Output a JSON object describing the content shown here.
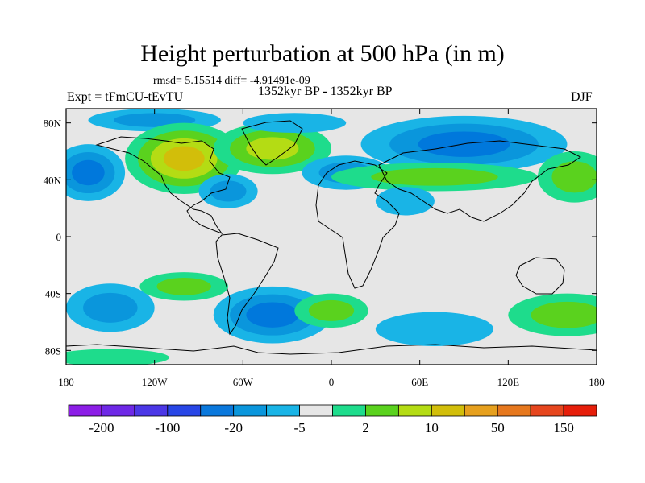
{
  "title": "Height perturbation at 500 hPa (in m)",
  "stats": "rmsd= 5.15514 diff= -4.91491e-09",
  "left_label": "Expt = tFmCU-tEvTU",
  "center_label": "1352kyr BP - 1352kyr BP",
  "right_label": "DJF",
  "map": {
    "projection": "cylindrical equidistant",
    "lon_range": [
      -180,
      180
    ],
    "lat_range": [
      -90,
      90
    ],
    "x_ticks": [
      {
        "lon": -180,
        "label": "180"
      },
      {
        "lon": -120,
        "label": "120W"
      },
      {
        "lon": -60,
        "label": "60W"
      },
      {
        "lon": 0,
        "label": "0"
      },
      {
        "lon": 60,
        "label": "60E"
      },
      {
        "lon": 120,
        "label": "120E"
      },
      {
        "lon": 180,
        "label": "180"
      }
    ],
    "y_ticks": [
      {
        "lat": 80,
        "label": "80N"
      },
      {
        "lat": 40,
        "label": "40N"
      },
      {
        "lat": 0,
        "label": "0"
      },
      {
        "lat": -40,
        "label": "40S"
      },
      {
        "lat": -80,
        "label": "80S"
      }
    ],
    "background_color": "#e6e6e6",
    "fields": [
      {
        "name": "arctic-negative",
        "lon": -120,
        "lat": 82,
        "rlon": 45,
        "rlat": 8,
        "levels": [
          "#19b4e6",
          "#0a96dc"
        ]
      },
      {
        "name": "north-pacific-negative",
        "lon": -165,
        "lat": 45,
        "rlon": 25,
        "rlat": 20,
        "levels": [
          "#19b4e6",
          "#0a96dc",
          "#0078dc"
        ]
      },
      {
        "name": "north-america-positive",
        "lon": -100,
        "lat": 55,
        "rlon": 40,
        "rlat": 25,
        "levels": [
          "#1edc8c",
          "#5ad21e",
          "#b4dc14",
          "#d2be0a"
        ]
      },
      {
        "name": "atlantic-positive",
        "lon": -40,
        "lat": 62,
        "rlon": 40,
        "rlat": 18,
        "levels": [
          "#1edc8c",
          "#5ad21e",
          "#b4dc14"
        ]
      },
      {
        "name": "greenland-negative",
        "lon": -25,
        "lat": 80,
        "rlon": 35,
        "rlat": 7,
        "levels": [
          "#19b4e6"
        ]
      },
      {
        "name": "subtropical-atlantic-negative",
        "lon": -70,
        "lat": 32,
        "rlon": 20,
        "rlat": 12,
        "levels": [
          "#19b4e6",
          "#0a96dc"
        ]
      },
      {
        "name": "europe-negative",
        "lon": 10,
        "lat": 45,
        "rlon": 30,
        "rlat": 12,
        "levels": [
          "#19b4e6",
          "#0a96dc"
        ]
      },
      {
        "name": "siberia-negative",
        "lon": 90,
        "lat": 65,
        "rlon": 70,
        "rlat": 20,
        "levels": [
          "#19b4e6",
          "#0a96dc",
          "#0078dc"
        ]
      },
      {
        "name": "asia-positive",
        "lon": 70,
        "lat": 42,
        "rlon": 70,
        "rlat": 10,
        "levels": [
          "#1edc8c",
          "#5ad21e"
        ]
      },
      {
        "name": "north-pacific-east-positive",
        "lon": 165,
        "lat": 42,
        "rlon": 25,
        "rlat": 18,
        "levels": [
          "#1edc8c",
          "#5ad21e"
        ]
      },
      {
        "name": "arabia-negative",
        "lon": 50,
        "lat": 25,
        "rlon": 20,
        "rlat": 10,
        "levels": [
          "#19b4e6"
        ]
      },
      {
        "name": "southern-pacific-negative",
        "lon": -150,
        "lat": -50,
        "rlon": 30,
        "rlat": 17,
        "levels": [
          "#19b4e6",
          "#0a96dc"
        ]
      },
      {
        "name": "south-pacific-positive",
        "lon": -100,
        "lat": -35,
        "rlon": 30,
        "rlat": 10,
        "levels": [
          "#1edc8c",
          "#5ad21e"
        ]
      },
      {
        "name": "south-atlantic-negative",
        "lon": -40,
        "lat": -55,
        "rlon": 40,
        "rlat": 20,
        "levels": [
          "#19b4e6",
          "#0a96dc",
          "#0078dc"
        ]
      },
      {
        "name": "south-africa-positive",
        "lon": 0,
        "lat": -52,
        "rlon": 25,
        "rlat": 12,
        "levels": [
          "#1edc8c",
          "#5ad21e"
        ]
      },
      {
        "name": "indian-ocean-negative",
        "lon": 70,
        "lat": -65,
        "rlon": 40,
        "rlat": 12,
        "levels": [
          "#19b4e6"
        ]
      },
      {
        "name": "australia-east-positive",
        "lon": 160,
        "lat": -55,
        "rlon": 40,
        "rlat": 15,
        "levels": [
          "#1edc8c",
          "#5ad21e"
        ]
      },
      {
        "name": "antarctic-positive",
        "lon": -150,
        "lat": -85,
        "rlon": 40,
        "rlat": 6,
        "levels": [
          "#1edc8c"
        ]
      }
    ]
  },
  "colorbar": {
    "colors": [
      "#8c1ee6",
      "#6e28e6",
      "#4b37e6",
      "#2846e6",
      "#0a78dc",
      "#0a96dc",
      "#19b4e6",
      "#e6e6e6",
      "#1edc8c",
      "#5ad21e",
      "#b4dc14",
      "#d2be0a",
      "#e6a01e",
      "#e6781e",
      "#e6461e",
      "#e61e0a"
    ],
    "labels": [
      {
        "after_box": 1,
        "text": "-200"
      },
      {
        "after_box": 3,
        "text": "-100"
      },
      {
        "after_box": 5,
        "text": "-20"
      },
      {
        "after_box": 7,
        "text": "-5"
      },
      {
        "after_box": 9,
        "text": "2"
      },
      {
        "after_box": 11,
        "text": "10"
      },
      {
        "after_box": 13,
        "text": "50"
      },
      {
        "after_box": 15,
        "text": "150"
      }
    ]
  }
}
